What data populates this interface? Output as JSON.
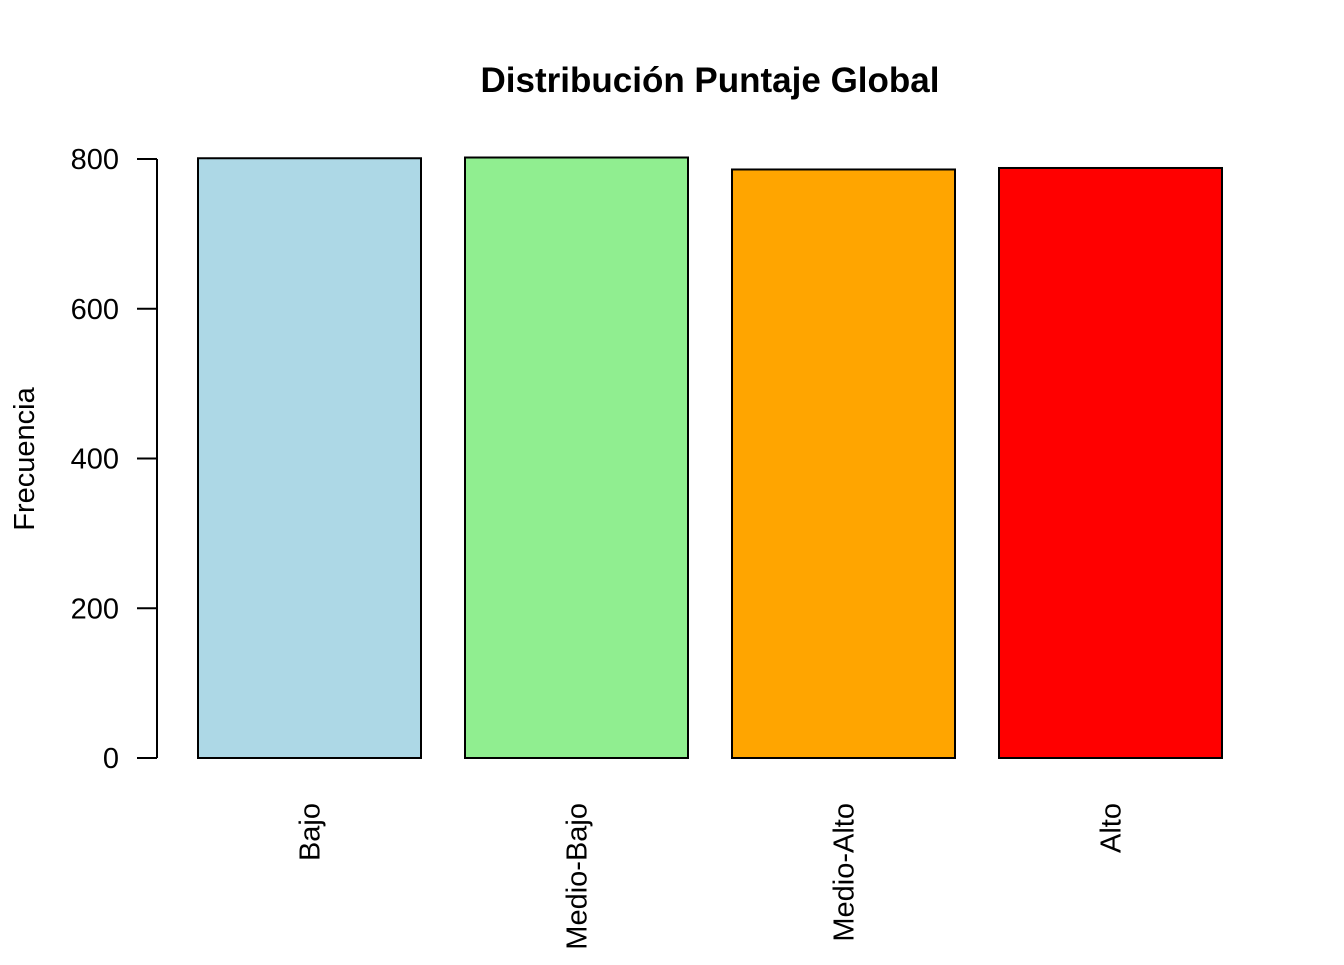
{
  "chart_data": {
    "type": "bar",
    "title": "Distribución Puntaje Global",
    "xlabel": "",
    "ylabel": "Frecuencia",
    "categories": [
      "Bajo",
      "Medio-Bajo",
      "Medio-Alto",
      "Alto"
    ],
    "values": [
      801,
      802,
      786,
      788
    ],
    "colors": [
      "#add8e6",
      "#90ee90",
      "#ffa500",
      "#ff0000"
    ],
    "ylim": [
      0,
      800
    ],
    "yticks": [
      0,
      200,
      400,
      600,
      800
    ],
    "grid": false,
    "legend": "none",
    "category_label_orientation": "vertical"
  }
}
